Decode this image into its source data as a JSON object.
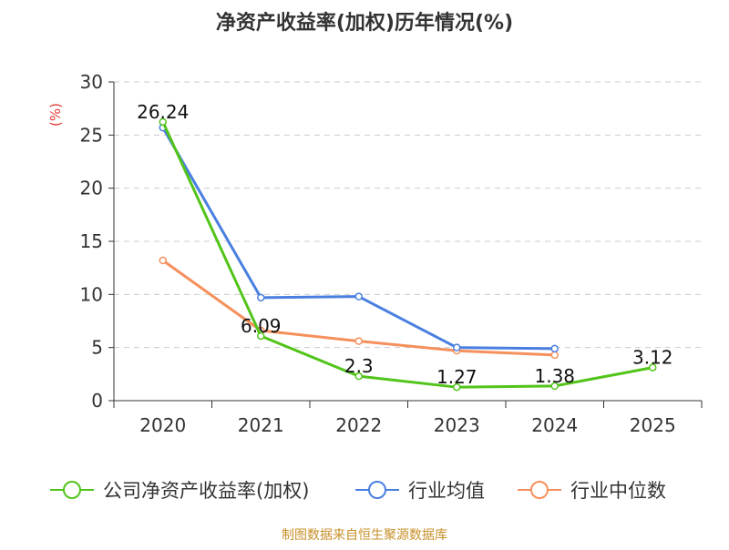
{
  "chart_data": {
    "type": "line",
    "title": "净资产收益率(加权)历年情况(%)",
    "ylabel": "(%)",
    "xlabel": "",
    "categories": [
      "2020",
      "2021",
      "2022",
      "2023",
      "2024",
      "2025"
    ],
    "ylim": [
      0,
      30
    ],
    "yticks": [
      0,
      5,
      10,
      15,
      20,
      25,
      30
    ],
    "grid": true,
    "legend_position": "bottom",
    "series": [
      {
        "name": "公司净资产收益率(加权)",
        "color": "#52c41a",
        "values": [
          26.24,
          6.09,
          2.3,
          1.27,
          1.38,
          3.12
        ],
        "data_labels": [
          "26.24",
          "6.09",
          "2.3",
          "1.27",
          "1.38",
          "3.12"
        ]
      },
      {
        "name": "行业均值",
        "color": "#4a7fe0",
        "values": [
          25.7,
          9.7,
          9.8,
          5.0,
          4.9,
          null
        ]
      },
      {
        "name": "行业中位数",
        "color": "#f5905c",
        "values": [
          13.2,
          6.6,
          5.6,
          4.7,
          4.3,
          null
        ]
      }
    ],
    "source": "制图数据来自恒生聚源数据库"
  },
  "colors": {
    "title": "#333333",
    "axis": "#333333",
    "tick_label": "#333333",
    "grid": "#cccccc",
    "ylabel": "#e53935",
    "source": "#c8902a"
  }
}
